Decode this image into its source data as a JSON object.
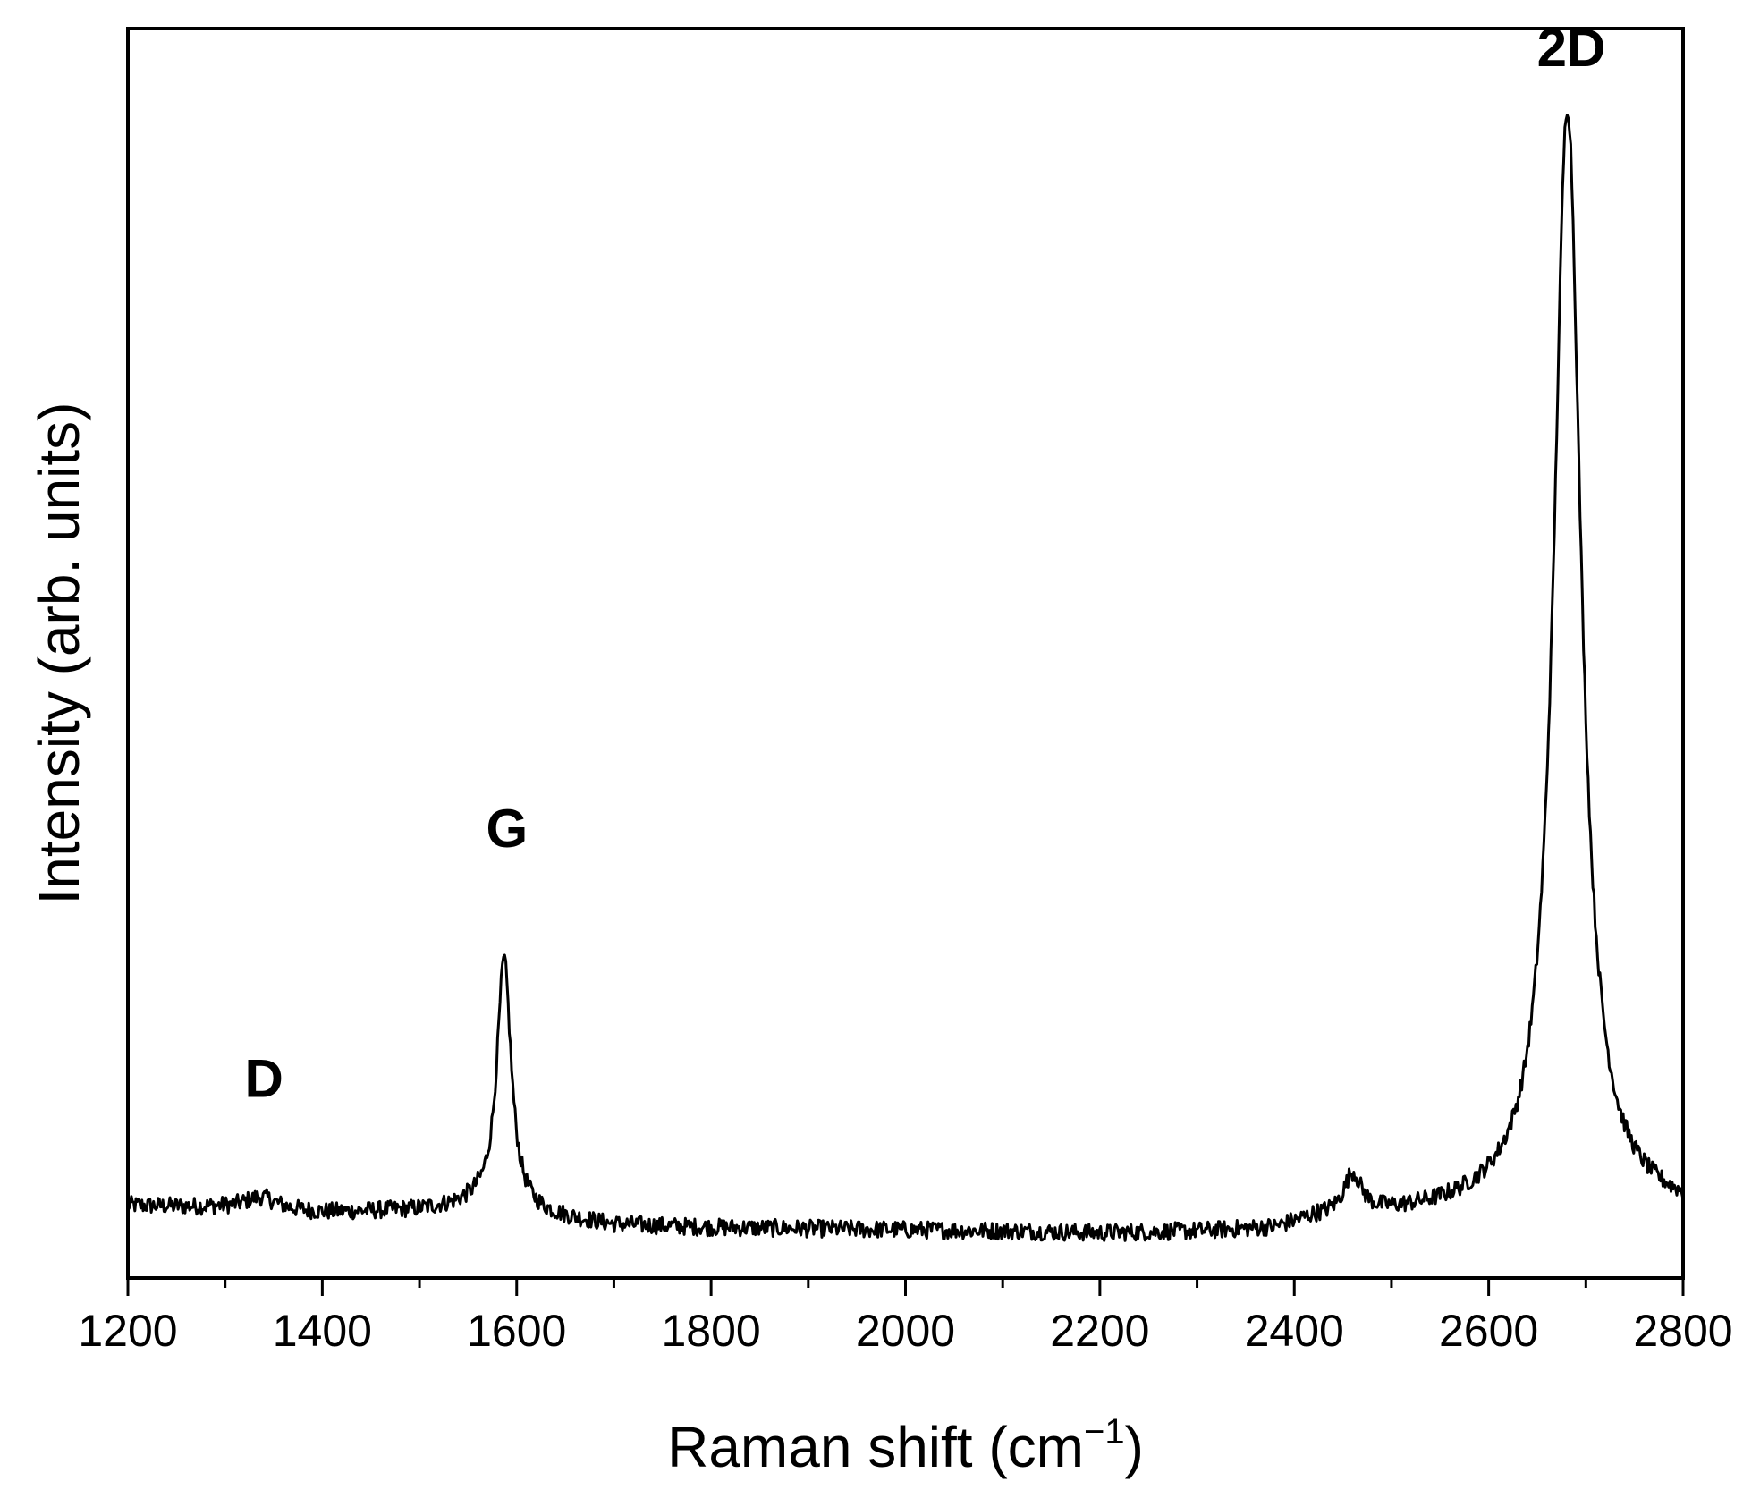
{
  "chart_data": {
    "type": "line",
    "title": "",
    "xlabel": "Raman shift (cm",
    "xlabel_sup": "−1",
    "xlabel_close": ")",
    "ylabel": "Intensity (arb. units)",
    "xlim": [
      1200,
      2800
    ],
    "ylim": [
      0,
      1.0
    ],
    "y_ticks_labeled": false,
    "x_ticks": [
      1200,
      1400,
      1600,
      1800,
      2000,
      2200,
      2400,
      2600,
      2800
    ],
    "x_tick_labels": [
      "1200",
      "1400",
      "1600",
      "1800",
      "2000",
      "2200",
      "2400",
      "2600",
      "2800"
    ],
    "x_minor_step": 100,
    "grid": false,
    "line_color": "#000000",
    "annotations": [
      {
        "label": "D",
        "x": 1340,
        "y": 0.145
      },
      {
        "label": "G",
        "x": 1590,
        "y": 0.345
      },
      {
        "label": "2D",
        "x": 2685,
        "y": 0.97
      }
    ],
    "series": [
      {
        "baseline": [
          [
            1200,
            0.058
          ],
          [
            1300,
            0.056
          ],
          [
            1400,
            0.052
          ],
          [
            1500,
            0.054
          ],
          [
            1560,
            0.058
          ],
          [
            1620,
            0.05
          ],
          [
            1700,
            0.042
          ],
          [
            1800,
            0.04
          ],
          [
            1900,
            0.039
          ],
          [
            2000,
            0.038
          ],
          [
            2100,
            0.037
          ],
          [
            2200,
            0.035
          ],
          [
            2300,
            0.036
          ],
          [
            2380,
            0.038
          ],
          [
            2420,
            0.046
          ],
          [
            2520,
            0.05
          ],
          [
            2600,
            0.054
          ],
          [
            2700,
            0.058
          ],
          [
            2800,
            0.052
          ]
        ],
        "peaks": [
          {
            "center": 1337,
            "height": 0.01,
            "width": 20
          },
          {
            "center": 1587,
            "height": 0.2,
            "width": 9
          },
          {
            "center": 2460,
            "height": 0.032,
            "width": 11
          },
          {
            "center": 2681,
            "height": 0.88,
            "width": 17
          }
        ],
        "noise_amplitude": 0.007
      }
    ]
  }
}
